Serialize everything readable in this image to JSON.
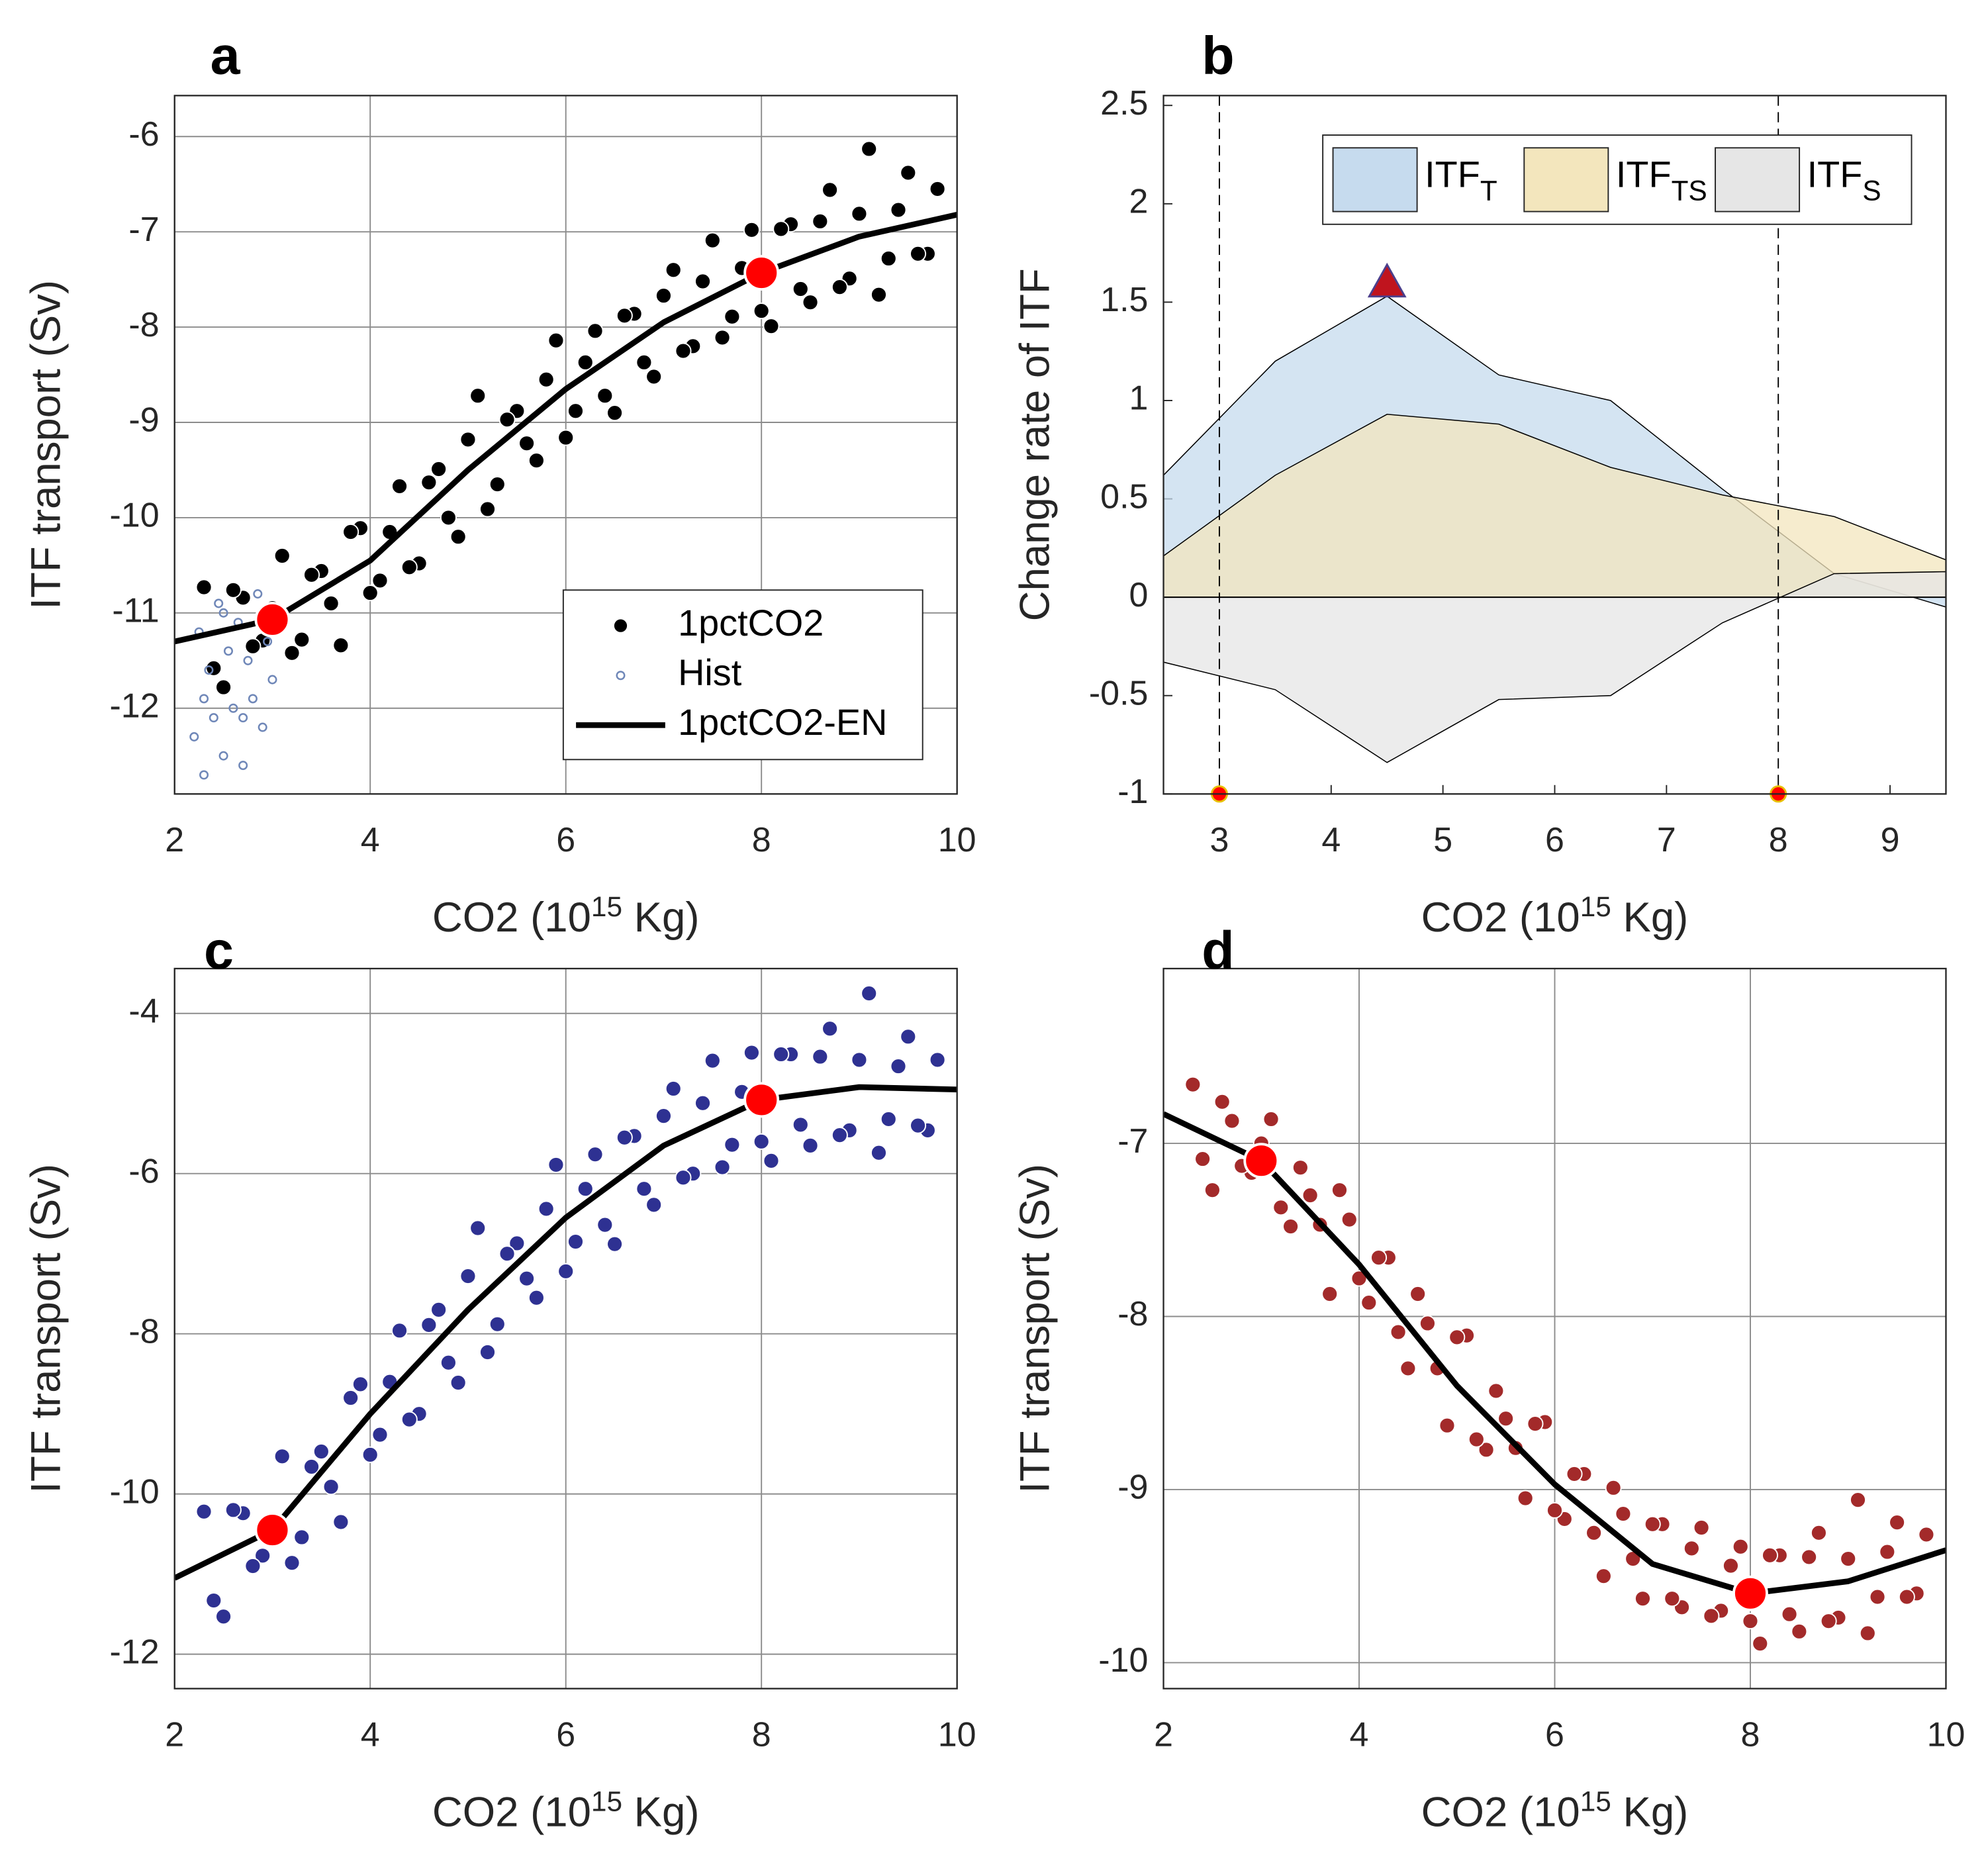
{
  "chart_data": [
    {
      "type": "scatter",
      "panel_label": "a",
      "ylabel": "ITF transport (Sv)",
      "xlabel": [
        "CO2 (10",
        "15",
        " Kg)"
      ],
      "xlim": [
        2,
        10
      ],
      "ylim": [
        -12.9,
        -5.57
      ],
      "xticks": [
        2,
        4,
        6,
        8,
        10
      ],
      "yticks": [
        -12,
        -11,
        -10,
        -9,
        -8,
        -7,
        -6
      ],
      "grid": true,
      "legend": "lower right",
      "series": [
        {
          "name": "1pctCO2",
          "color": "#000000",
          "marker": "dot",
          "x": [
            2.3,
            2.5,
            2.7,
            2.9,
            3.1,
            3.3,
            3.5,
            3.7,
            3.9,
            4.1,
            4.3,
            4.5,
            4.7,
            4.9,
            5.1,
            5.3,
            5.5,
            5.7,
            5.9,
            6.1,
            6.3,
            6.5,
            6.7,
            6.9,
            7.1,
            7.3,
            7.5,
            7.7,
            7.9,
            8.1,
            8.3,
            8.5,
            8.7,
            8.9,
            9.1,
            9.3,
            9.5,
            9.7,
            2.4,
            2.6,
            2.8,
            3.0,
            3.2,
            3.4,
            3.6,
            3.8,
            4.0,
            4.2,
            4.4,
            4.6,
            4.8,
            5.0,
            5.2,
            5.4,
            5.6,
            5.8,
            6.0,
            6.2,
            6.4,
            6.6,
            6.8,
            7.0,
            7.2,
            7.4,
            7.6,
            7.8,
            8.0,
            8.2,
            8.4,
            8.6,
            8.8,
            9.0,
            9.2,
            9.4,
            9.6,
            9.8
          ],
          "values": [
            -10.73,
            -11.78,
            -10.84,
            -11.29,
            -10.4,
            -11.28,
            -10.56,
            -11.34,
            -10.11,
            -10.66,
            -9.67,
            -10.48,
            -9.49,
            -10.2,
            -8.72,
            -9.65,
            -8.88,
            -9.4,
            -8.14,
            -8.88,
            -8.04,
            -8.9,
            -7.86,
            -8.52,
            -7.4,
            -8.2,
            -7.09,
            -7.89,
            -6.98,
            -7.99,
            -6.92,
            -7.74,
            -6.56,
            -7.49,
            -6.13,
            -7.28,
            -6.38,
            -7.23,
            -11.58,
            -10.76,
            -11.35,
            -10.95,
            -11.42,
            -10.6,
            -10.9,
            -10.15,
            -10.79,
            -10.15,
            -10.52,
            -9.63,
            -10.0,
            -9.18,
            -9.91,
            -8.97,
            -9.22,
            -8.55,
            -9.16,
            -8.37,
            -8.72,
            -7.88,
            -8.37,
            -7.67,
            -8.25,
            -7.52,
            -8.11,
            -7.38,
            -7.83,
            -6.97,
            -7.6,
            -6.89,
            -7.58,
            -6.81,
            -7.66,
            -6.77,
            -7.23,
            -6.55
          ]
        },
        {
          "name": "Hist",
          "color": "#6f87b8",
          "marker": "ring",
          "x": [
            2.2,
            2.25,
            2.3,
            2.35,
            2.4,
            2.45,
            2.5,
            2.55,
            2.6,
            2.65,
            2.7,
            2.75,
            2.8,
            2.85,
            2.9,
            2.95,
            3.0,
            2.3,
            2.5,
            2.7
          ],
          "values": [
            -12.3,
            -11.2,
            -12.7,
            -11.6,
            -12.1,
            -10.9,
            -12.5,
            -11.4,
            -12.0,
            -11.1,
            -12.6,
            -11.5,
            -11.9,
            -10.8,
            -12.2,
            -11.3,
            -11.7,
            -11.9,
            -11.0,
            -12.1
          ]
        }
      ],
      "lines": [
        {
          "name": "1pctCO2-EN",
          "color": "#000000",
          "x": [
            2,
            3,
            4,
            5,
            6,
            7,
            8,
            9,
            10
          ],
          "values": [
            -11.3,
            -11.07,
            -10.45,
            -9.5,
            -8.65,
            -7.95,
            -7.43,
            -7.05,
            -6.82
          ]
        }
      ],
      "highlights": {
        "color": "#ff0000",
        "x": [
          3,
          8
        ],
        "values": [
          -11.07,
          -7.43
        ]
      }
    },
    {
      "type": "area",
      "panel_label": "b",
      "ylabel": "Change rate of ITF",
      "xlabel": [
        "CO2 (10",
        "15",
        " Kg)"
      ],
      "xlim": [
        2.5,
        9.5
      ],
      "ylim": [
        -1,
        2.55
      ],
      "xticks": [
        3,
        4,
        5,
        6,
        7,
        8,
        9
      ],
      "yticks": [
        -1,
        -0.5,
        0,
        0.5,
        1,
        1.5,
        2,
        2.5
      ],
      "grid": false,
      "legend": "upper right",
      "x": [
        2.5,
        3.5,
        4.5,
        5.5,
        6.5,
        7.5,
        8.5,
        9.5
      ],
      "series": [
        {
          "name": "ITF",
          "subscript": "T",
          "color": "#c6dbee",
          "values": [
            0.62,
            1.2,
            1.53,
            1.13,
            1.0,
            0.55,
            0.12,
            -0.05
          ]
        },
        {
          "name": "ITF",
          "subscript": "TS",
          "color": "#f3e6bd",
          "values": [
            0.21,
            0.62,
            0.93,
            0.88,
            0.66,
            0.52,
            0.41,
            0.19
          ]
        },
        {
          "name": "ITF",
          "subscript": "S",
          "color": "#e6e6e6",
          "values": [
            -0.33,
            -0.47,
            -0.84,
            -0.52,
            -0.5,
            -0.13,
            0.12,
            0.13
          ]
        }
      ],
      "vlines": [
        3,
        8
      ],
      "highlights": {
        "color": "#ff0000",
        "x": [
          3,
          8
        ],
        "values": [
          -1,
          -1
        ]
      },
      "peak": {
        "color": "#c0141e",
        "x": 4.5,
        "value": 1.6
      }
    },
    {
      "type": "scatter",
      "panel_label": "c",
      "ylabel": "ITF transport (Sv)",
      "xlabel": [
        "CO2 (10",
        "15",
        " Kg)"
      ],
      "xlim": [
        2,
        10
      ],
      "ylim": [
        -12.43,
        -3.44
      ],
      "xticks": [
        2,
        4,
        6,
        8,
        10
      ],
      "yticks": [
        -12,
        -10,
        -8,
        -6,
        -4
      ],
      "grid": true,
      "series": [
        {
          "color": "#2e3192",
          "marker": "dot",
          "x": [
            2.3,
            2.5,
            2.7,
            2.9,
            3.1,
            3.3,
            3.5,
            3.7,
            3.9,
            4.1,
            4.3,
            4.5,
            4.7,
            4.9,
            5.1,
            5.3,
            5.5,
            5.7,
            5.9,
            6.1,
            6.3,
            6.5,
            6.7,
            6.9,
            7.1,
            7.3,
            7.5,
            7.7,
            7.9,
            8.1,
            8.3,
            8.5,
            8.7,
            8.9,
            9.1,
            9.3,
            9.5,
            9.7,
            2.4,
            2.6,
            2.8,
            3.0,
            3.2,
            3.4,
            3.6,
            3.8,
            4.0,
            4.2,
            4.4,
            4.6,
            4.8,
            5.0,
            5.2,
            5.4,
            5.6,
            5.8,
            6.0,
            6.2,
            6.4,
            6.6,
            6.8,
            7.0,
            7.2,
            7.4,
            7.6,
            7.8,
            8.0,
            8.2,
            8.4,
            8.6,
            8.8,
            9.0,
            9.2,
            9.4,
            9.6,
            9.8
          ],
          "values": [
            -10.22,
            -11.53,
            -10.24,
            -10.77,
            -9.53,
            -10.54,
            -9.47,
            -10.35,
            -8.63,
            -9.26,
            -7.96,
            -9.0,
            -7.7,
            -8.61,
            -6.68,
            -7.88,
            -6.87,
            -7.55,
            -5.89,
            -6.85,
            -5.76,
            -6.88,
            -5.53,
            -6.39,
            -4.94,
            -6.0,
            -4.59,
            -5.64,
            -4.49,
            -5.84,
            -4.51,
            -5.65,
            -4.19,
            -5.46,
            -3.75,
            -5.32,
            -4.29,
            -5.46,
            -11.33,
            -10.2,
            -10.9,
            -10.33,
            -10.86,
            -9.66,
            -9.91,
            -8.8,
            -9.51,
            -8.6,
            -9.07,
            -7.89,
            -8.36,
            -7.28,
            -8.23,
            -7.0,
            -7.31,
            -6.44,
            -7.22,
            -6.19,
            -6.64,
            -5.55,
            -6.19,
            -5.28,
            -6.05,
            -5.12,
            -5.92,
            -4.98,
            -5.6,
            -4.51,
            -5.39,
            -4.54,
            -5.52,
            -4.58,
            -5.74,
            -4.66,
            -5.4,
            -4.58
          ]
        }
      ],
      "lines": [
        {
          "color": "#000000",
          "x": [
            2,
            3,
            4,
            5,
            6,
            7,
            8,
            9,
            10
          ],
          "values": [
            -11.05,
            -10.45,
            -9.0,
            -7.7,
            -6.55,
            -5.65,
            -5.08,
            -4.92,
            -4.95
          ]
        }
      ],
      "highlights": {
        "color": "#ff0000",
        "x": [
          3,
          8
        ],
        "values": [
          -10.45,
          -5.08
        ]
      }
    },
    {
      "type": "scatter",
      "panel_label": "d",
      "ylabel": "ITF transport (Sv)",
      "xlabel": [
        "CO2 (10",
        "15",
        " Kg)"
      ],
      "xlim": [
        2,
        10
      ],
      "ylim": [
        -10.15,
        -5.99
      ],
      "xticks": [
        2,
        4,
        6,
        8,
        10
      ],
      "yticks": [
        -10,
        -9,
        -8,
        -7
      ],
      "grid": true,
      "series": [
        {
          "color": "#a32a2a",
          "marker": "dot",
          "x": [
            2.3,
            2.5,
            2.7,
            2.9,
            3.1,
            3.3,
            3.5,
            3.7,
            3.9,
            4.1,
            4.3,
            4.5,
            4.7,
            4.9,
            5.1,
            5.3,
            5.5,
            5.7,
            5.9,
            6.1,
            6.3,
            6.5,
            6.7,
            6.9,
            7.1,
            7.3,
            7.5,
            7.7,
            7.9,
            8.1,
            8.3,
            8.5,
            8.7,
            8.9,
            9.1,
            9.3,
            9.5,
            9.7,
            2.4,
            2.6,
            2.8,
            3.0,
            3.2,
            3.4,
            3.6,
            3.8,
            4.0,
            4.2,
            4.4,
            4.6,
            4.8,
            5.0,
            5.2,
            5.4,
            5.6,
            5.8,
            6.0,
            6.2,
            6.4,
            6.6,
            6.8,
            7.0,
            7.2,
            7.4,
            7.6,
            7.8,
            8.0,
            8.2,
            8.4,
            8.6,
            8.8,
            9.0,
            9.2,
            9.4,
            9.6,
            9.8
          ],
          "values": [
            -6.66,
            -7.27,
            -6.87,
            -7.17,
            -6.86,
            -7.48,
            -7.3,
            -7.87,
            -7.44,
            -7.92,
            -7.66,
            -8.3,
            -8.04,
            -8.63,
            -8.11,
            -8.77,
            -8.59,
            -9.05,
            -8.61,
            -9.17,
            -8.91,
            -9.5,
            -9.14,
            -9.63,
            -9.2,
            -9.68,
            -9.22,
            -9.7,
            -9.33,
            -9.89,
            -9.38,
            -9.82,
            -9.25,
            -9.74,
            -9.06,
            -9.62,
            -9.19,
            -9.6,
            -7.09,
            -6.76,
            -7.13,
            -7.0,
            -7.37,
            -7.14,
            -7.47,
            -7.27,
            -7.78,
            -7.66,
            -8.09,
            -7.87,
            -8.3,
            -8.12,
            -8.71,
            -8.43,
            -8.76,
            -8.62,
            -9.12,
            -8.91,
            -9.25,
            -8.99,
            -9.4,
            -9.2,
            -9.63,
            -9.34,
            -9.73,
            -9.44,
            -9.76,
            -9.38,
            -9.72,
            -9.39,
            -9.76,
            -9.4,
            -9.83,
            -9.36,
            -9.62,
            -9.26
          ]
        }
      ],
      "lines": [
        {
          "color": "#000000",
          "x": [
            2,
            3,
            4,
            5,
            6,
            7,
            8,
            9,
            10
          ],
          "values": [
            -6.83,
            -7.1,
            -7.7,
            -8.4,
            -8.97,
            -9.43,
            -9.6,
            -9.53,
            -9.35
          ]
        }
      ],
      "highlights": {
        "color": "#ff0000",
        "x": [
          3,
          8
        ],
        "values": [
          -7.1,
          -9.6
        ]
      }
    }
  ]
}
